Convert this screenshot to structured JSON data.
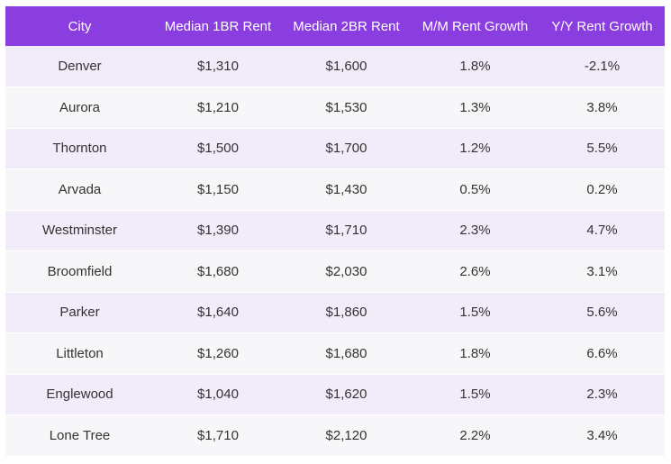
{
  "table": {
    "headers": [
      "City",
      "Median 1BR Rent",
      "Median 2BR Rent",
      "M/M Rent Growth",
      "Y/Y Rent Growth"
    ],
    "rows": [
      [
        "Denver",
        "$1,310",
        "$1,600",
        "1.8%",
        "-2.1%"
      ],
      [
        "Aurora",
        "$1,210",
        "$1,530",
        "1.3%",
        "3.8%"
      ],
      [
        "Thornton",
        "$1,500",
        "$1,700",
        "1.2%",
        "5.5%"
      ],
      [
        "Arvada",
        "$1,150",
        "$1,430",
        "0.5%",
        "0.2%"
      ],
      [
        "Westminster",
        "$1,390",
        "$1,710",
        "2.3%",
        "4.7%"
      ],
      [
        "Broomfield",
        "$1,680",
        "$2,030",
        "2.6%",
        "3.1%"
      ],
      [
        "Parker",
        "$1,640",
        "$1,860",
        "1.5%",
        "5.6%"
      ],
      [
        "Littleton",
        "$1,260",
        "$1,680",
        "1.8%",
        "6.6%"
      ],
      [
        "Englewood",
        "$1,040",
        "$1,620",
        "1.5%",
        "2.3%"
      ],
      [
        "Lone Tree",
        "$1,710",
        "$2,120",
        "2.2%",
        "3.4%"
      ]
    ]
  },
  "colors": {
    "header_bg": "#8a3ee0",
    "header_text": "#ffffff",
    "row_odd_bg": "#f2ebfa",
    "row_even_bg": "#f7f6f8",
    "cell_text": "#333333"
  }
}
